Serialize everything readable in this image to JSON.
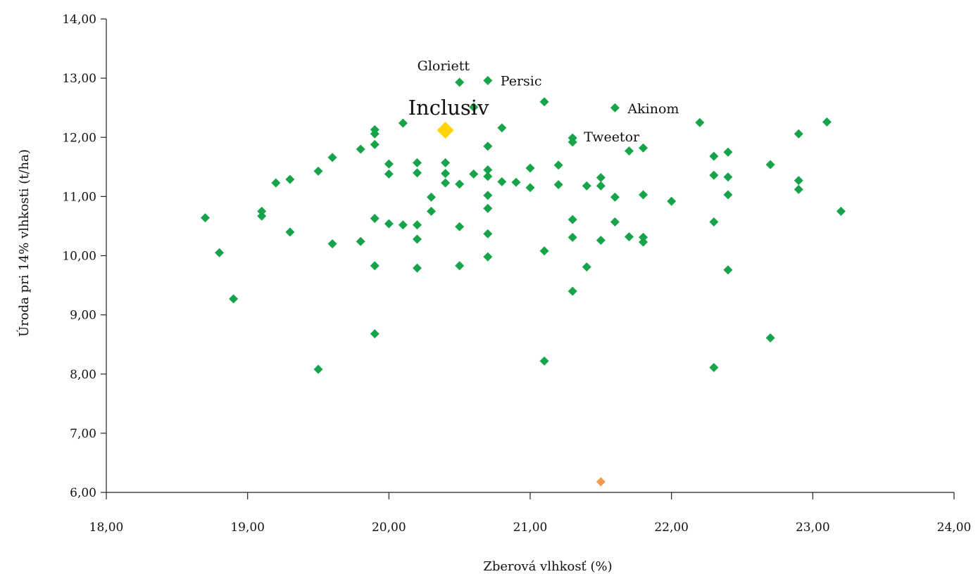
{
  "chart_data": {
    "type": "scatter",
    "xlabel": "Zberová vlhkosť (%)",
    "ylabel": "Úroda pri 14% vlhkosti (t/ha)",
    "xlim": [
      18,
      24
    ],
    "ylim": [
      6,
      14
    ],
    "x_ticks": [
      "18,00",
      "19,00",
      "20,00",
      "21,00",
      "22,00",
      "23,00",
      "24,00"
    ],
    "y_ticks": [
      "6,00",
      "7,00",
      "8,00",
      "9,00",
      "10,00",
      "11,00",
      "12,00",
      "13,00",
      "14,00"
    ],
    "grid": false,
    "colors": {
      "main": "#16a34a",
      "highlight": "#ffd400",
      "outlier": "#f39a4a"
    },
    "series": [
      {
        "role": "main",
        "points": [
          [
            18.7,
            10.64
          ],
          [
            18.8,
            10.05
          ],
          [
            18.9,
            9.27
          ],
          [
            19.1,
            10.75
          ],
          [
            19.1,
            10.67
          ],
          [
            19.2,
            11.23
          ],
          [
            19.3,
            11.29
          ],
          [
            19.3,
            10.4
          ],
          [
            19.5,
            11.43
          ],
          [
            19.5,
            8.08
          ],
          [
            19.6,
            11.66
          ],
          [
            19.6,
            10.2
          ],
          [
            19.8,
            11.8
          ],
          [
            19.8,
            10.24
          ],
          [
            19.9,
            12.13
          ],
          [
            19.9,
            12.06
          ],
          [
            19.9,
            11.88
          ],
          [
            19.9,
            10.63
          ],
          [
            19.9,
            9.83
          ],
          [
            19.9,
            8.68
          ],
          [
            20.0,
            11.55
          ],
          [
            20.0,
            11.38
          ],
          [
            20.0,
            10.54
          ],
          [
            20.1,
            12.24
          ],
          [
            20.1,
            10.52
          ],
          [
            20.2,
            11.57
          ],
          [
            20.2,
            11.4
          ],
          [
            20.2,
            10.52
          ],
          [
            20.2,
            10.28
          ],
          [
            20.2,
            9.79
          ],
          [
            20.3,
            10.99
          ],
          [
            20.3,
            10.75
          ],
          [
            20.4,
            11.57
          ],
          [
            20.4,
            11.39
          ],
          [
            20.4,
            11.23
          ],
          [
            20.5,
            12.93
          ],
          [
            20.5,
            11.21
          ],
          [
            20.5,
            10.49
          ],
          [
            20.5,
            9.83
          ],
          [
            20.6,
            12.51
          ],
          [
            20.6,
            11.38
          ],
          [
            20.7,
            12.96
          ],
          [
            20.7,
            11.85
          ],
          [
            20.7,
            11.45
          ],
          [
            20.7,
            11.34
          ],
          [
            20.7,
            11.02
          ],
          [
            20.7,
            10.8
          ],
          [
            20.7,
            10.37
          ],
          [
            20.7,
            9.98
          ],
          [
            20.8,
            12.16
          ],
          [
            20.8,
            11.25
          ],
          [
            20.9,
            11.24
          ],
          [
            21.0,
            11.48
          ],
          [
            21.0,
            11.15
          ],
          [
            21.1,
            12.6
          ],
          [
            21.1,
            10.08
          ],
          [
            21.1,
            8.22
          ],
          [
            21.2,
            11.53
          ],
          [
            21.2,
            11.2
          ],
          [
            21.3,
            11.99
          ],
          [
            21.3,
            11.92
          ],
          [
            21.3,
            10.61
          ],
          [
            21.3,
            10.31
          ],
          [
            21.3,
            9.4
          ],
          [
            21.4,
            11.18
          ],
          [
            21.4,
            9.81
          ],
          [
            21.5,
            11.32
          ],
          [
            21.5,
            11.18
          ],
          [
            21.5,
            10.26
          ],
          [
            21.6,
            12.5
          ],
          [
            21.6,
            10.99
          ],
          [
            21.6,
            10.57
          ],
          [
            21.7,
            11.77
          ],
          [
            21.7,
            10.32
          ],
          [
            21.8,
            11.82
          ],
          [
            21.8,
            11.03
          ],
          [
            21.8,
            10.31
          ],
          [
            21.8,
            10.23
          ],
          [
            22.0,
            10.92
          ],
          [
            22.2,
            12.25
          ],
          [
            22.3,
            11.68
          ],
          [
            22.3,
            11.36
          ],
          [
            22.3,
            10.57
          ],
          [
            22.3,
            8.11
          ],
          [
            22.4,
            11.75
          ],
          [
            22.4,
            11.33
          ],
          [
            22.4,
            11.03
          ],
          [
            22.4,
            9.76
          ],
          [
            22.7,
            11.54
          ],
          [
            22.7,
            8.61
          ],
          [
            22.9,
            12.06
          ],
          [
            22.9,
            11.27
          ],
          [
            22.9,
            11.12
          ],
          [
            23.1,
            12.26
          ],
          [
            23.2,
            10.75
          ]
        ]
      },
      {
        "role": "highlight",
        "points": [
          [
            20.4,
            12.12
          ]
        ]
      },
      {
        "role": "outlier",
        "points": [
          [
            21.5,
            6.18
          ]
        ]
      }
    ],
    "annotations": [
      {
        "text": "Gloriett",
        "x": 20.5,
        "y": 12.93
      },
      {
        "text": "Persic",
        "x": 20.7,
        "y": 12.96
      },
      {
        "text": "Inclusiv",
        "x": 20.4,
        "y": 12.12,
        "highlight": true
      },
      {
        "text": "Akinom",
        "x": 21.6,
        "y": 12.5
      },
      {
        "text": "Tweetor",
        "x": 21.3,
        "y": 11.99
      }
    ]
  }
}
